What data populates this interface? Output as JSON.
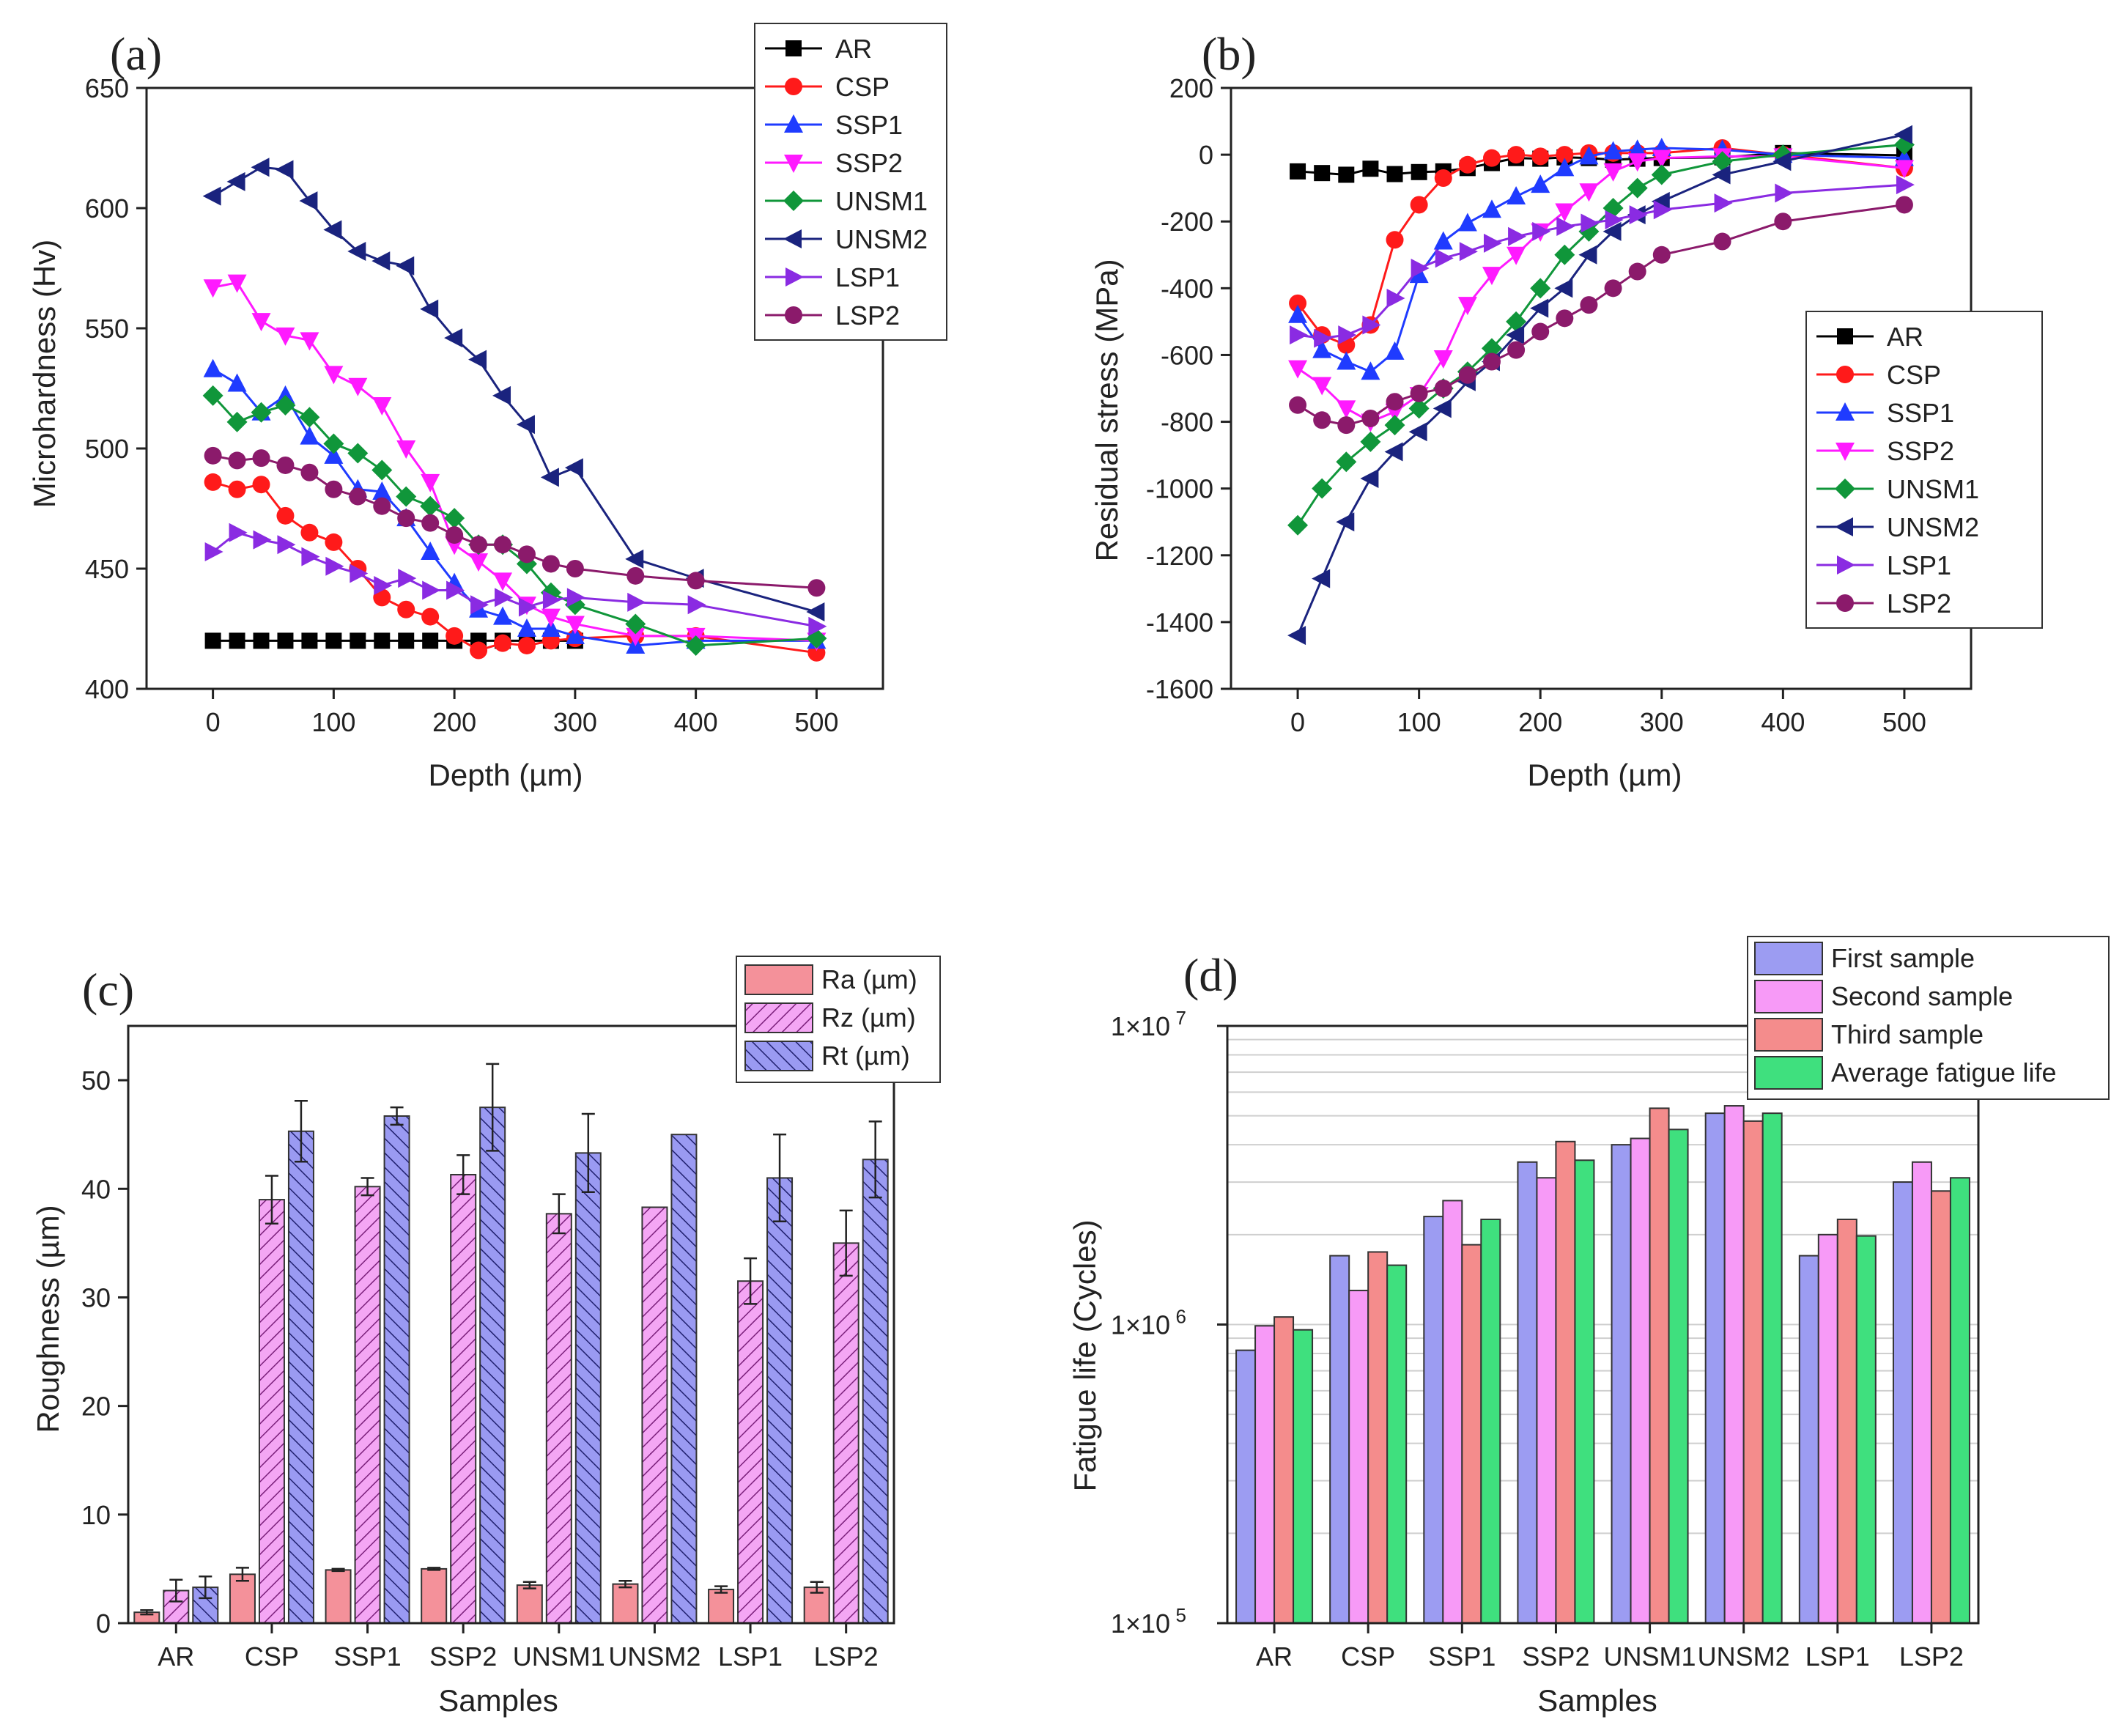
{
  "figure": {
    "colors": {
      "AR": "#000000",
      "CSP": "#ff1a1a",
      "SSP1": "#1f3bff",
      "SSP2": "#ff1aff",
      "UNSM1": "#10963a",
      "UNSM2": "#1a237e",
      "LSP1": "#8a2be2",
      "LSP2": "#8b1a6b",
      "Ra": "#f4919a",
      "Rz": "#f08ef0",
      "Rt": "#8f8ff0",
      "First": "#9c9cf2",
      "Second": "#f79af7",
      "Third": "#f48c8c",
      "Average": "#3fe07e"
    }
  },
  "chart_data": [
    {
      "id": "a",
      "panel_label": "(a)",
      "type": "line",
      "xlabel": "Depth (µm)",
      "ylabel": "Microhardness (Hv)",
      "xlim": [
        -55,
        555
      ],
      "ylim": [
        400,
        650
      ],
      "xticks": [
        0,
        100,
        200,
        300,
        400,
        500
      ],
      "yticks": [
        400,
        450,
        500,
        550,
        600,
        650
      ],
      "legend_position": "top-right",
      "series": [
        {
          "name": "AR",
          "marker": "square",
          "x": [
            0,
            20,
            40,
            60,
            80,
            100,
            120,
            140,
            160,
            180,
            200,
            220,
            240,
            260,
            280,
            300
          ],
          "y": [
            420,
            420,
            420,
            420,
            420,
            420,
            420,
            420,
            420,
            420,
            420,
            420,
            420,
            420,
            420,
            420
          ]
        },
        {
          "name": "CSP",
          "marker": "circle",
          "x": [
            0,
            20,
            40,
            60,
            80,
            100,
            120,
            140,
            160,
            180,
            200,
            220,
            240,
            260,
            280,
            300,
            350,
            400,
            500
          ],
          "y": [
            486,
            483,
            485,
            472,
            465,
            461,
            450,
            438,
            433,
            430,
            422,
            416,
            419,
            418,
            420,
            421,
            422,
            422,
            415
          ]
        },
        {
          "name": "SSP1",
          "marker": "triangle-up",
          "x": [
            0,
            20,
            40,
            60,
            80,
            100,
            120,
            140,
            160,
            180,
            200,
            220,
            240,
            260,
            280,
            300,
            350,
            400,
            500
          ],
          "y": [
            533,
            527,
            515,
            522,
            505,
            497,
            483,
            482,
            471,
            457,
            444,
            433,
            430,
            425,
            425,
            422,
            418,
            420,
            420
          ]
        },
        {
          "name": "SSP2",
          "marker": "triangle-down",
          "x": [
            0,
            20,
            40,
            60,
            80,
            100,
            120,
            140,
            160,
            180,
            200,
            220,
            240,
            260,
            280,
            300,
            350,
            400,
            500
          ],
          "y": [
            567,
            569,
            553,
            547,
            545,
            531,
            526,
            518,
            500,
            486,
            460,
            453,
            445,
            435,
            430,
            427,
            422,
            422,
            420
          ]
        },
        {
          "name": "UNSM1",
          "marker": "diamond",
          "x": [
            0,
            20,
            40,
            60,
            80,
            100,
            120,
            140,
            160,
            180,
            200,
            220,
            240,
            260,
            280,
            300,
            350,
            400,
            500
          ],
          "y": [
            522,
            511,
            515,
            518,
            513,
            502,
            498,
            491,
            480,
            476,
            471,
            460,
            460,
            452,
            440,
            435,
            427,
            418,
            421
          ]
        },
        {
          "name": "UNSM2",
          "marker": "triangle-left",
          "x": [
            0,
            20,
            40,
            60,
            80,
            100,
            120,
            140,
            160,
            180,
            200,
            220,
            240,
            260,
            280,
            300,
            350,
            400,
            500
          ],
          "y": [
            605,
            611,
            617,
            616,
            603,
            591,
            582,
            578,
            576,
            558,
            546,
            537,
            522,
            510,
            488,
            492,
            454,
            446,
            432
          ]
        },
        {
          "name": "LSP1",
          "marker": "triangle-right",
          "x": [
            0,
            20,
            40,
            60,
            80,
            100,
            120,
            140,
            160,
            180,
            200,
            220,
            240,
            260,
            280,
            300,
            350,
            400,
            500
          ],
          "y": [
            457,
            465,
            462,
            460,
            455,
            451,
            448,
            443,
            446,
            441,
            441,
            435,
            438,
            434,
            437,
            438,
            436,
            435,
            426
          ]
        },
        {
          "name": "LSP2",
          "marker": "circle",
          "x": [
            0,
            20,
            40,
            60,
            80,
            100,
            120,
            140,
            160,
            180,
            200,
            220,
            240,
            260,
            280,
            300,
            350,
            400,
            500
          ],
          "y": [
            497,
            495,
            496,
            493,
            490,
            483,
            480,
            476,
            471,
            469,
            464,
            460,
            460,
            456,
            452,
            450,
            447,
            445,
            442
          ]
        }
      ]
    },
    {
      "id": "b",
      "panel_label": "(b)",
      "type": "line",
      "xlabel": "Depth (µm)",
      "ylabel": "Residual stress (MPa)",
      "xlim": [
        -55,
        555
      ],
      "ylim": [
        -1600,
        200
      ],
      "xticks": [
        0,
        100,
        200,
        300,
        400,
        500
      ],
      "yticks": [
        -1600,
        -1400,
        -1200,
        -1000,
        -800,
        -600,
        -400,
        -200,
        0,
        200
      ],
      "legend_position": "right",
      "series": [
        {
          "name": "AR",
          "marker": "square",
          "x": [
            0,
            20,
            40,
            60,
            80,
            100,
            120,
            140,
            160,
            180,
            200,
            220,
            240,
            260,
            280,
            300,
            350,
            400,
            500
          ],
          "y": [
            -50,
            -55,
            -60,
            -42,
            -58,
            -52,
            -50,
            -40,
            -25,
            -10,
            -12,
            -8,
            -10,
            -15,
            -12,
            -10,
            -8,
            5,
            -2
          ]
        },
        {
          "name": "CSP",
          "marker": "circle",
          "x": [
            0,
            20,
            40,
            60,
            80,
            100,
            120,
            140,
            160,
            180,
            200,
            220,
            240,
            260,
            280,
            300,
            350,
            400,
            500
          ],
          "y": [
            -445,
            -540,
            -570,
            -510,
            -255,
            -150,
            -70,
            -30,
            -10,
            0,
            -5,
            0,
            5,
            5,
            5,
            5,
            20,
            0,
            -40
          ]
        },
        {
          "name": "SSP1",
          "marker": "triangle-up",
          "x": [
            0,
            20,
            40,
            60,
            80,
            100,
            120,
            140,
            160,
            180,
            200,
            220,
            240,
            260,
            280,
            300,
            350,
            400,
            500
          ],
          "y": [
            -480,
            -585,
            -620,
            -650,
            -590,
            -360,
            -260,
            -205,
            -165,
            -125,
            -90,
            -40,
            -5,
            10,
            15,
            20,
            15,
            0,
            -10
          ]
        },
        {
          "name": "SSP2",
          "marker": "triangle-down",
          "x": [
            0,
            20,
            40,
            60,
            80,
            100,
            120,
            140,
            160,
            180,
            200,
            220,
            240,
            260,
            280,
            300,
            350,
            400,
            500
          ],
          "y": [
            -640,
            -690,
            -760,
            -800,
            -770,
            -720,
            -610,
            -450,
            -360,
            -300,
            -230,
            -170,
            -110,
            -50,
            -20,
            -10,
            -5,
            -5,
            -40
          ]
        },
        {
          "name": "UNSM1",
          "marker": "diamond",
          "x": [
            0,
            20,
            40,
            60,
            80,
            100,
            120,
            140,
            160,
            180,
            200,
            220,
            240,
            260,
            280,
            300,
            350,
            400,
            500
          ],
          "y": [
            -1110,
            -1000,
            -920,
            -860,
            -810,
            -760,
            -700,
            -650,
            -580,
            -500,
            -400,
            -300,
            -230,
            -160,
            -100,
            -60,
            -20,
            0,
            30
          ]
        },
        {
          "name": "UNSM2",
          "marker": "triangle-left",
          "x": [
            0,
            20,
            40,
            60,
            80,
            100,
            120,
            140,
            160,
            180,
            200,
            220,
            240,
            260,
            280,
            300,
            350,
            400,
            500
          ],
          "y": [
            -1440,
            -1270,
            -1100,
            -970,
            -890,
            -830,
            -760,
            -680,
            -620,
            -540,
            -460,
            -400,
            -300,
            -230,
            -180,
            -140,
            -60,
            -20,
            60
          ]
        },
        {
          "name": "LSP1",
          "marker": "triangle-right",
          "x": [
            0,
            20,
            40,
            60,
            80,
            100,
            120,
            140,
            160,
            180,
            200,
            220,
            240,
            260,
            280,
            300,
            350,
            400,
            500
          ],
          "y": [
            -540,
            -550,
            -540,
            -510,
            -430,
            -340,
            -310,
            -290,
            -265,
            -245,
            -230,
            -215,
            -205,
            -195,
            -180,
            -165,
            -145,
            -115,
            -90
          ]
        },
        {
          "name": "LSP2",
          "marker": "circle",
          "x": [
            0,
            20,
            40,
            60,
            80,
            100,
            120,
            140,
            160,
            180,
            200,
            220,
            240,
            260,
            280,
            300,
            350,
            400,
            500
          ],
          "y": [
            -750,
            -795,
            -810,
            -790,
            -740,
            -715,
            -700,
            -660,
            -620,
            -585,
            -530,
            -490,
            -450,
            -400,
            -350,
            -300,
            -260,
            -200,
            -150
          ]
        }
      ]
    },
    {
      "id": "c",
      "panel_label": "(c)",
      "type": "bar",
      "xlabel": "Samples",
      "ylabel": "Roughness (µm)",
      "ylim": [
        0,
        55
      ],
      "yticks": [
        0,
        10,
        20,
        30,
        40,
        50
      ],
      "categories": [
        "AR",
        "CSP",
        "SSP1",
        "SSP2",
        "UNSM1",
        "UNSM2",
        "LSP1",
        "LSP2"
      ],
      "legend_position": "top-right",
      "series": [
        {
          "name": "Ra (µm)",
          "pattern": "solid",
          "values": [
            1.0,
            4.5,
            4.9,
            5.0,
            3.5,
            3.6,
            3.1,
            3.3
          ],
          "errors": [
            0.2,
            0.6,
            0.1,
            0.1,
            0.3,
            0.3,
            0.3,
            0.5
          ]
        },
        {
          "name": "Rz (µm)",
          "pattern": "hatch",
          "values": [
            3.0,
            39.0,
            40.2,
            41.3,
            37.7,
            38.3,
            31.5,
            35.0
          ],
          "errors": [
            1.0,
            2.2,
            0.8,
            1.8,
            1.8,
            0.0,
            2.1,
            3.0
          ]
        },
        {
          "name": "Rt (µm)",
          "pattern": "hatch",
          "values": [
            3.3,
            45.3,
            46.7,
            47.5,
            43.3,
            45.0,
            41.0,
            42.7
          ],
          "errors": [
            1.0,
            2.8,
            0.8,
            4.0,
            3.6,
            0.0,
            4.0,
            3.5
          ]
        }
      ]
    },
    {
      "id": "d",
      "panel_label": "(d)",
      "type": "bar",
      "scale": "log",
      "xlabel": "Samples",
      "ylabel": "Fatigue life (Cycles)",
      "ylim": [
        100000,
        10000000
      ],
      "yticks": [
        {
          "value": 100000,
          "mantissa": "1×10",
          "exponent": "5"
        },
        {
          "value": 1000000,
          "mantissa": "1×10",
          "exponent": "6"
        },
        {
          "value": 10000000,
          "mantissa": "1×10",
          "exponent": "7"
        }
      ],
      "categories": [
        "AR",
        "CSP",
        "SSP1",
        "SSP2",
        "UNSM1",
        "UNSM2",
        "LSP1",
        "LSP2"
      ],
      "legend_position": "top-right",
      "series": [
        {
          "name": "First sample",
          "values": [
            820000,
            1700000,
            2300000,
            3500000,
            4000000,
            5100000,
            1700000,
            3000000
          ]
        },
        {
          "name": "Second sample",
          "values": [
            990000,
            1300000,
            2600000,
            3100000,
            4200000,
            5400000,
            2000000,
            3500000
          ]
        },
        {
          "name": "Third sample",
          "values": [
            1060000,
            1750000,
            1850000,
            4100000,
            5300000,
            4800000,
            2250000,
            2800000
          ]
        },
        {
          "name": "Average fatigue life",
          "values": [
            960000,
            1580000,
            2250000,
            3550000,
            4500000,
            5100000,
            1980000,
            3100000
          ]
        }
      ]
    }
  ]
}
